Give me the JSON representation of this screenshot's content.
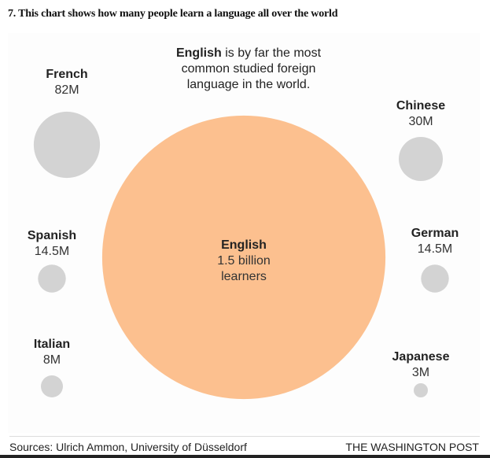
{
  "heading": "7. This chart shows how many people learn a language all over the world",
  "chart_data": {
    "type": "bubble",
    "annotation": {
      "bold": "English",
      "rest": " is by far the most common studied foreign language in the world."
    },
    "series": [
      {
        "name": "English",
        "label": "1.5 billion",
        "sublabel": "learners",
        "value_millions": 1500,
        "color": "#fcc08f"
      },
      {
        "name": "French",
        "label": "82M",
        "value_millions": 82,
        "color": "#d3d3d3"
      },
      {
        "name": "Chinese",
        "label": "30M",
        "value_millions": 30,
        "color": "#d3d3d3"
      },
      {
        "name": "Spanish",
        "label": "14.5M",
        "value_millions": 14.5,
        "color": "#d3d3d3"
      },
      {
        "name": "German",
        "label": "14.5M",
        "value_millions": 14.5,
        "color": "#d3d3d3"
      },
      {
        "name": "Italian",
        "label": "8M",
        "value_millions": 8,
        "color": "#d3d3d3"
      },
      {
        "name": "Japanese",
        "label": "3M",
        "value_millions": 3,
        "color": "#d3d3d3"
      }
    ]
  },
  "footer": {
    "source": "Sources: Ulrich Ammon, University of Düsseldorf",
    "brand": "THE WASHINGTON POST"
  }
}
